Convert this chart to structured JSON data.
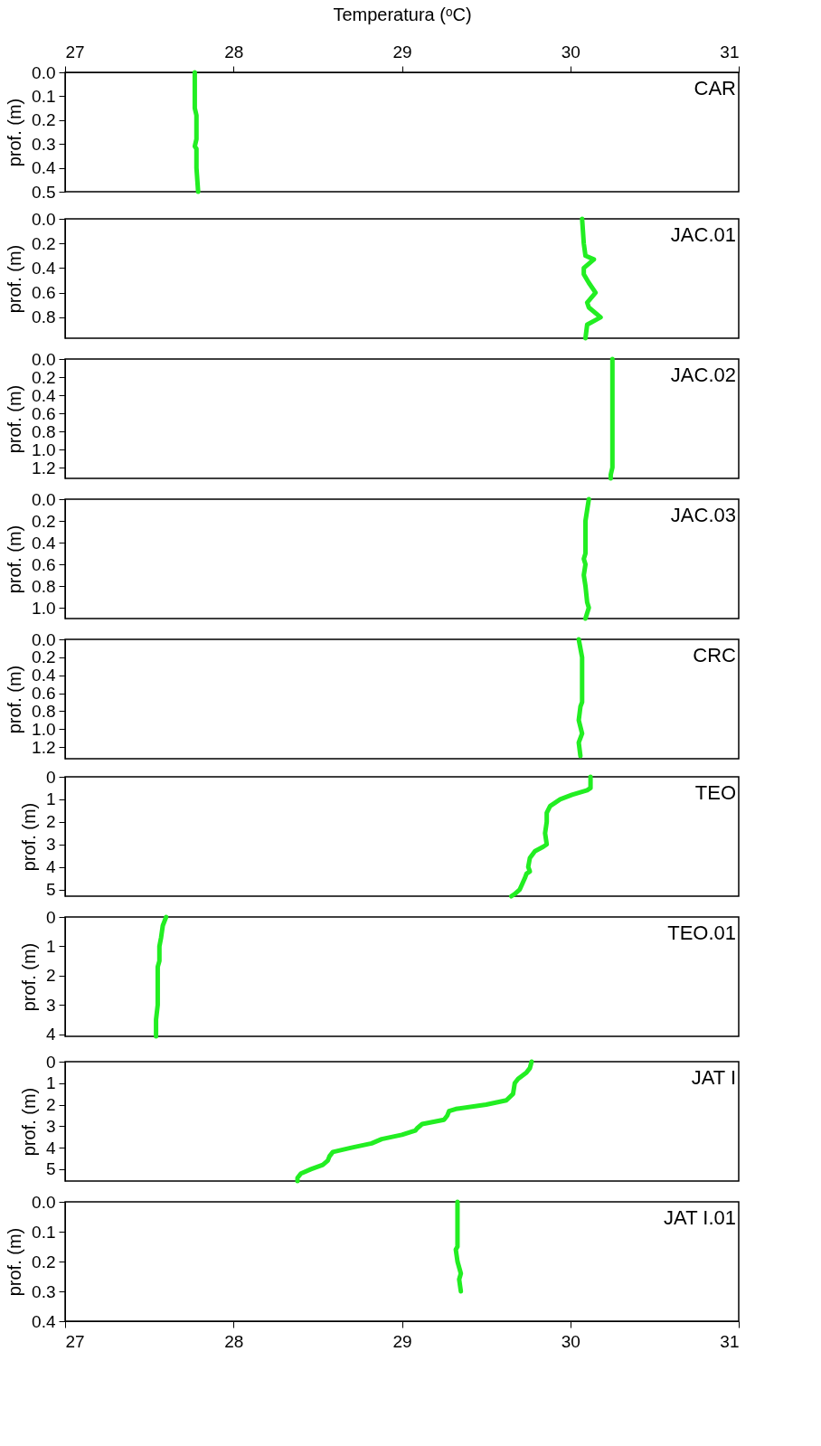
{
  "chart_data": [
    {
      "type": "line",
      "xlabel": "Temperatura (ᵒC)",
      "ylabel": "prof. (m)",
      "annotations": [
        "CAR"
      ],
      "xlim": [
        27,
        31
      ],
      "xticks": [
        27,
        28,
        29,
        30,
        31
      ],
      "ylim": [
        0.5,
        0
      ],
      "yticks": [
        {
          "value": 0,
          "label": "0.0"
        },
        {
          "value": 0.1,
          "label": "0.1"
        },
        {
          "value": 0.2,
          "label": "0.2"
        },
        {
          "value": 0.3,
          "label": "0.3"
        },
        {
          "value": 0.4,
          "label": "0.4"
        },
        {
          "value": 0.5,
          "label": "0.5"
        }
      ],
      "grid": false,
      "line_style": "solid",
      "marker": "none",
      "series": [
        {
          "color": "#22ee22",
          "x": [
            27.77,
            27.77,
            27.78,
            27.78,
            27.77,
            27.78,
            27.78,
            27.79
          ],
          "values": [
            0.0,
            0.15,
            0.18,
            0.28,
            0.31,
            0.32,
            0.4,
            0.5
          ]
        }
      ]
    },
    {
      "type": "line",
      "ylabel": "prof. (m)",
      "annotations": [
        "JAC.01"
      ],
      "xlim": [
        27,
        31
      ],
      "tick_labels": "y",
      "ylim": [
        0.97,
        0
      ],
      "yticks": [
        {
          "value": 0,
          "label": "0.0"
        },
        {
          "value": 0.2,
          "label": "0.2"
        },
        {
          "value": 0.4,
          "label": "0.4"
        },
        {
          "value": 0.6,
          "label": "0.6"
        },
        {
          "value": 0.8,
          "label": "0.8"
        }
      ],
      "grid": false,
      "line_style": "solid",
      "marker": "none",
      "series": [
        {
          "color": "#22ee22",
          "x": [
            30.07,
            30.08,
            30.09,
            30.14,
            30.08,
            30.08,
            30.11,
            30.15,
            30.1,
            30.11,
            30.18,
            30.1,
            30.09
          ],
          "values": [
            0.0,
            0.2,
            0.3,
            0.33,
            0.4,
            0.45,
            0.52,
            0.6,
            0.68,
            0.72,
            0.8,
            0.86,
            0.97
          ]
        }
      ]
    },
    {
      "type": "line",
      "ylabel": "prof. (m)",
      "annotations": [
        "JAC.02"
      ],
      "xlim": [
        27,
        31
      ],
      "tick_labels": "y",
      "ylim": [
        1.32,
        0
      ],
      "yticks": [
        {
          "value": 0,
          "label": "0.0"
        },
        {
          "value": 0.2,
          "label": "0.2"
        },
        {
          "value": 0.4,
          "label": "0.4"
        },
        {
          "value": 0.6,
          "label": "0.6"
        },
        {
          "value": 0.8,
          "label": "0.8"
        },
        {
          "value": 1.0,
          "label": "1.0"
        },
        {
          "value": 1.2,
          "label": "1.2"
        }
      ],
      "grid": false,
      "line_style": "solid",
      "marker": "none",
      "series": [
        {
          "color": "#22ee22",
          "x": [
            30.25,
            30.25,
            30.25,
            30.24,
            30.24
          ],
          "values": [
            0.0,
            0.6,
            1.2,
            1.28,
            1.32
          ]
        }
      ]
    },
    {
      "type": "line",
      "ylabel": "prof. (m)",
      "annotations": [
        "JAC.03"
      ],
      "xlim": [
        27,
        31
      ],
      "tick_labels": "y",
      "ylim": [
        1.1,
        0
      ],
      "yticks": [
        {
          "value": 0,
          "label": "0.0"
        },
        {
          "value": 0.2,
          "label": "0.2"
        },
        {
          "value": 0.4,
          "label": "0.4"
        },
        {
          "value": 0.6,
          "label": "0.6"
        },
        {
          "value": 0.8,
          "label": "0.8"
        },
        {
          "value": 1.0,
          "label": "1.0"
        }
      ],
      "grid": false,
      "line_style": "solid",
      "marker": "none",
      "series": [
        {
          "color": "#22ee22",
          "x": [
            30.11,
            30.1,
            30.09,
            30.09,
            30.08,
            30.09,
            30.08,
            30.09,
            30.1,
            30.11,
            30.09
          ],
          "values": [
            0.0,
            0.1,
            0.2,
            0.5,
            0.55,
            0.6,
            0.7,
            0.8,
            0.95,
            1.0,
            1.1
          ]
        }
      ]
    },
    {
      "type": "line",
      "ylabel": "prof. (m)",
      "annotations": [
        "CRC"
      ],
      "xlim": [
        27,
        31
      ],
      "tick_labels": "y",
      "ylim": [
        1.33,
        0
      ],
      "yticks": [
        {
          "value": 0,
          "label": "0.0"
        },
        {
          "value": 0.2,
          "label": "0.2"
        },
        {
          "value": 0.4,
          "label": "0.4"
        },
        {
          "value": 0.6,
          "label": "0.6"
        },
        {
          "value": 0.8,
          "label": "0.8"
        },
        {
          "value": 1.0,
          "label": "1.0"
        },
        {
          "value": 1.2,
          "label": "1.2"
        }
      ],
      "grid": false,
      "line_style": "solid",
      "marker": "none",
      "series": [
        {
          "color": "#22ee22",
          "x": [
            30.05,
            30.06,
            30.07,
            30.07,
            30.06,
            30.05,
            30.07,
            30.05,
            30.06
          ],
          "values": [
            0.0,
            0.1,
            0.2,
            0.7,
            0.75,
            0.9,
            1.05,
            1.15,
            1.3
          ]
        }
      ]
    },
    {
      "type": "line",
      "ylabel": "prof. (m)",
      "annotations": [
        "TEO"
      ],
      "xlim": [
        27,
        31
      ],
      "tick_labels": "y",
      "ylim": [
        5.3,
        0
      ],
      "yticks": [
        0,
        1,
        2,
        3,
        4,
        5
      ],
      "grid": false,
      "line_style": "solid",
      "marker": "none",
      "series": [
        {
          "color": "#22ee22",
          "x": [
            30.12,
            30.12,
            30.1,
            30.01,
            29.94,
            29.88,
            29.86,
            29.86,
            29.85,
            29.86,
            29.84,
            29.79,
            29.76,
            29.75,
            29.76,
            29.74,
            29.73,
            29.7,
            29.67,
            29.65
          ],
          "values": [
            0.0,
            0.5,
            0.6,
            0.8,
            1.0,
            1.3,
            1.6,
            2.0,
            2.5,
            3.0,
            3.1,
            3.3,
            3.6,
            4.0,
            4.2,
            4.3,
            4.5,
            5.0,
            5.2,
            5.3
          ]
        }
      ]
    },
    {
      "type": "line",
      "ylabel": "prof. (m)",
      "annotations": [
        "TEO.01"
      ],
      "xlim": [
        27,
        31
      ],
      "tick_labels": "y",
      "ylim": [
        4.07,
        0
      ],
      "yticks": [
        0,
        1,
        2,
        3,
        4
      ],
      "grid": false,
      "line_style": "solid",
      "marker": "none",
      "series": [
        {
          "color": "#22ee22",
          "x": [
            27.6,
            27.58,
            27.57,
            27.56,
            27.56,
            27.55,
            27.55,
            27.55,
            27.54,
            27.54
          ],
          "values": [
            0.0,
            0.3,
            0.7,
            1.0,
            1.5,
            1.7,
            2.5,
            3.0,
            3.5,
            4.07
          ]
        }
      ]
    },
    {
      "type": "line",
      "ylabel": "prof. (m)",
      "annotations": [
        "JAT I"
      ],
      "xlim": [
        27,
        31
      ],
      "tick_labels": "y",
      "ylim": [
        5.55,
        0
      ],
      "yticks": [
        0,
        1,
        2,
        3,
        4,
        5
      ],
      "grid": false,
      "line_style": "solid",
      "marker": "none",
      "series": [
        {
          "color": "#22ee22",
          "x": [
            29.77,
            29.76,
            29.74,
            29.69,
            29.67,
            29.66,
            29.62,
            29.5,
            29.32,
            29.28,
            29.27,
            29.25,
            29.12,
            29.09,
            29.08,
            29.0,
            28.88,
            28.82,
            28.7,
            28.59,
            28.57,
            28.56,
            28.53,
            28.46,
            28.4,
            28.38,
            28.38
          ],
          "values": [
            0.0,
            0.3,
            0.5,
            0.8,
            1.0,
            1.5,
            1.8,
            2.0,
            2.2,
            2.3,
            2.5,
            2.7,
            2.9,
            3.1,
            3.2,
            3.4,
            3.6,
            3.8,
            4.0,
            4.2,
            4.4,
            4.6,
            4.8,
            5.0,
            5.2,
            5.4,
            5.55
          ]
        }
      ]
    },
    {
      "type": "line",
      "ylabel": "prof. (m)",
      "annotations": [
        "JAT I.01"
      ],
      "xlim": [
        27,
        31
      ],
      "xticks": [
        27,
        28,
        29,
        30,
        31
      ],
      "ylim": [
        0.4,
        0
      ],
      "yticks": [
        {
          "value": 0,
          "label": "0.0"
        },
        {
          "value": 0.1,
          "label": "0.1"
        },
        {
          "value": 0.2,
          "label": "0.2"
        },
        {
          "value": 0.3,
          "label": "0.3"
        },
        {
          "value": 0.4,
          "label": "0.4"
        }
      ],
      "grid": false,
      "line_style": "solid",
      "marker": "none",
      "series": [
        {
          "color": "#22ee22",
          "x": [
            29.33,
            29.33,
            29.32,
            29.33,
            29.35,
            29.34,
            29.35
          ],
          "values": [
            0.0,
            0.15,
            0.16,
            0.2,
            0.24,
            0.26,
            0.3
          ]
        }
      ]
    }
  ]
}
